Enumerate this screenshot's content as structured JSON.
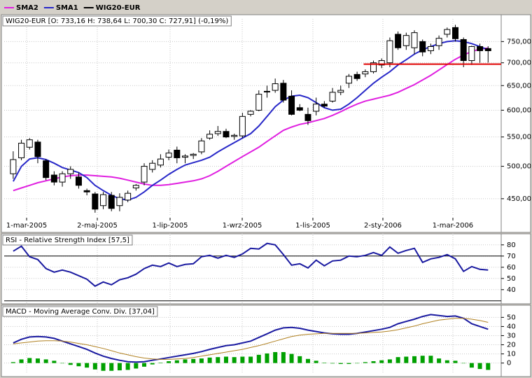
{
  "chart_data": [
    {
      "type": "candlestick",
      "title": "WIG20-EUR [O: 733,16 H: 738,64  L: 700,30  C: 727,91] (-0,19%)",
      "name": "WIG20-EUR",
      "color": "#000000",
      "open": [
        488,
        514,
        532,
        541,
        509,
        486,
        475,
        488,
        483,
        462,
        457,
        440,
        455,
        440,
        448,
        466,
        475,
        495,
        502,
        515,
        527,
        515,
        518,
        524,
        548,
        556,
        560,
        551,
        552,
        592,
        600,
        638,
        640,
        655,
        628,
        605,
        592,
        598,
        612,
        618,
        636,
        655,
        674,
        675,
        680,
        695,
        700,
        768,
        740,
        735,
        750,
        728,
        740,
        768,
        785,
        755,
        705,
        738,
        733.16
      ],
      "high": [
        525,
        545,
        548,
        545,
        512,
        492,
        492,
        500,
        490,
        465,
        460,
        460,
        460,
        458,
        462,
        472,
        505,
        510,
        520,
        528,
        533,
        520,
        522,
        548,
        562,
        570,
        565,
        556,
        595,
        600,
        640,
        650,
        665,
        662,
        640,
        612,
        605,
        625,
        618,
        645,
        650,
        675,
        680,
        685,
        705,
        710,
        760,
        775,
        772,
        778,
        755,
        745,
        765,
        785,
        792,
        760,
        740,
        745,
        738.64
      ],
      "low": [
        480,
        510,
        528,
        505,
        478,
        470,
        468,
        480,
        465,
        455,
        430,
        435,
        432,
        432,
        445,
        462,
        470,
        490,
        498,
        510,
        505,
        505,
        512,
        520,
        545,
        552,
        548,
        545,
        548,
        588,
        598,
        625,
        635,
        615,
        590,
        598,
        572,
        590,
        605,
        615,
        630,
        645,
        660,
        668,
        676,
        688,
        690,
        730,
        730,
        720,
        715,
        720,
        730,
        760,
        750,
        690,
        695,
        700,
        700.3
      ],
      "close": [
        511,
        539,
        545,
        516,
        482,
        475,
        488,
        495,
        470,
        460,
        435,
        456,
        436,
        452,
        458,
        470,
        500,
        505,
        512,
        522,
        514,
        517,
        520,
        543,
        555,
        560,
        550,
        553,
        588,
        598,
        632,
        637,
        654,
        620,
        592,
        600,
        580,
        612,
        608,
        636,
        640,
        670,
        665,
        680,
        700,
        705,
        752,
        735,
        765,
        772,
        725,
        738,
        758,
        780,
        757,
        705,
        738,
        728,
        727.91
      ],
      "series": [
        {
          "name": "SMA2",
          "color": "#e020e0",
          "values": [
            462,
            466,
            470,
            474,
            477,
            480,
            483,
            485,
            486,
            486,
            485,
            484,
            483,
            481,
            478,
            475,
            472,
            470,
            470,
            471,
            473,
            475,
            477,
            480,
            485,
            492,
            500,
            508,
            516,
            524,
            532,
            542,
            552,
            562,
            568,
            573,
            576,
            580,
            584,
            590,
            597,
            605,
            612,
            618,
            622,
            626,
            630,
            636,
            644,
            652,
            662,
            672,
            684,
            696,
            708,
            718,
            726,
            732,
            734
          ]
        },
        {
          "name": "SMA1",
          "color": "#2828c8",
          "values": [
            476,
            500,
            512,
            514,
            511,
            505,
            498,
            494,
            490,
            482,
            470,
            462,
            455,
            450,
            448,
            452,
            460,
            470,
            478,
            487,
            495,
            502,
            506,
            510,
            515,
            524,
            532,
            540,
            548,
            556,
            570,
            588,
            607,
            620,
            628,
            630,
            625,
            615,
            605,
            600,
            602,
            612,
            625,
            640,
            655,
            668,
            680,
            695,
            707,
            720,
            730,
            738,
            745,
            750,
            752,
            750,
            745,
            738,
            730
          ]
        }
      ],
      "log": true,
      "grid": true,
      "ylim": [
        425,
        800
      ],
      "yticks": [
        {
          "value": 450,
          "label": "450,00"
        },
        {
          "value": 500,
          "label": "500,00"
        },
        {
          "value": 550,
          "label": "550,00"
        },
        {
          "value": 600,
          "label": "600,00"
        },
        {
          "value": 650,
          "label": "650,00"
        },
        {
          "value": 700,
          "label": "700,00"
        },
        {
          "value": 750,
          "label": "750,00"
        }
      ],
      "xlim": [
        -1.1,
        59.6
      ],
      "xticks": [
        {
          "value": 1.64,
          "label": "1-mar-2005"
        },
        {
          "value": 10.27,
          "label": "2-maj-2005"
        },
        {
          "value": 19.16,
          "label": "1-lip-2005"
        },
        {
          "value": 27.97,
          "label": "1-wrz-2005"
        },
        {
          "value": 36.6,
          "label": "1-lis-2005"
        },
        {
          "value": 45.15,
          "label": "2-sty-2006"
        },
        {
          "value": 53.7,
          "label": "1-mar-2006"
        }
      ],
      "hline": {
        "value": 697,
        "from": 42.8,
        "color": "#e00000"
      }
    },
    {
      "type": "line",
      "title": "RSI - Relative Strength Index [57,5]",
      "series": [
        {
          "color": "#1a1aa0",
          "values": [
            74.4,
            78.8,
            69.4,
            66.9,
            58.8,
            55.6,
            57.5,
            55.6,
            52.5,
            49.4,
            43.1,
            46.9,
            44.4,
            48.8,
            50.6,
            53.8,
            58.8,
            61.9,
            60.6,
            63.8,
            60.6,
            62.5,
            63.1,
            69.4,
            70.6,
            68.1,
            70.6,
            68.8,
            71.9,
            76.9,
            76.3,
            81.3,
            80,
            71.3,
            61.9,
            63.1,
            59.4,
            66.3,
            61.3,
            65.6,
            66.3,
            70,
            69.4,
            70.6,
            73.1,
            70.6,
            78.1,
            72.5,
            75,
            76.9,
            64.4,
            67.5,
            68.8,
            71.3,
            67.5,
            56.3,
            60.6,
            58.1,
            57.5
          ]
        }
      ],
      "levels": [
        70,
        30
      ],
      "grid": true,
      "ylim": [
        28,
        88
      ],
      "yticks": [
        40,
        50,
        60,
        70,
        80
      ]
    },
    {
      "type": "line",
      "title": "MACD - Moving Average Conv. Div. [37,04]",
      "series": [
        {
          "color": "#1a1aa0",
          "values": [
            22,
            26,
            28.5,
            29,
            28.5,
            27,
            24,
            21,
            18,
            15,
            11,
            7.5,
            5,
            3,
            1.5,
            1,
            1.5,
            3,
            4.5,
            6,
            7.5,
            9,
            10.5,
            12.5,
            15,
            17,
            19,
            20,
            22,
            24,
            28,
            32,
            36,
            38.5,
            39,
            38,
            36,
            34.5,
            33,
            32,
            31.5,
            31.5,
            32.5,
            34,
            35.5,
            37,
            39,
            43,
            45.5,
            48,
            51,
            53,
            52,
            51,
            51.5,
            49,
            43,
            40,
            37
          ]
        },
        {
          "color": "#b08020",
          "values": [
            21,
            22,
            23,
            24,
            24.5,
            24.5,
            24,
            23,
            21.5,
            20,
            18,
            16,
            13.5,
            11,
            9,
            7,
            5.5,
            4.5,
            4,
            4,
            4.5,
            5,
            6,
            7.5,
            9,
            10.5,
            12,
            13.5,
            15,
            17,
            19,
            21.5,
            24,
            26.5,
            29,
            30.5,
            31.5,
            32,
            32.5,
            32.5,
            32.5,
            32.5,
            32.5,
            33,
            33.5,
            34,
            35,
            36.5,
            38.5,
            40.5,
            43,
            45,
            47,
            48,
            49,
            49,
            48,
            46.5,
            44.5
          ]
        }
      ],
      "bars": {
        "color": "#00a000",
        "values": [
          1,
          4,
          5.5,
          5,
          4,
          2.5,
          0,
          -2,
          -3.5,
          -5,
          -7,
          -8.5,
          -8.5,
          -8,
          -7.5,
          -6,
          -4,
          -1.5,
          0.5,
          2,
          3,
          4,
          4.5,
          5,
          6,
          6.5,
          7,
          6.5,
          7,
          7,
          9,
          10.5,
          12,
          12,
          10,
          7.5,
          4.5,
          2.5,
          0.5,
          -0.5,
          -1,
          -1,
          0,
          1,
          2,
          3,
          4,
          6.5,
          7,
          7.5,
          8,
          8,
          5,
          3,
          2.5,
          0,
          -5,
          -6.5,
          -7.5
        ]
      },
      "grid": true,
      "ylim": [
        -11,
        61
      ],
      "yticks": [
        0,
        10,
        20,
        30,
        40,
        50
      ]
    }
  ]
}
